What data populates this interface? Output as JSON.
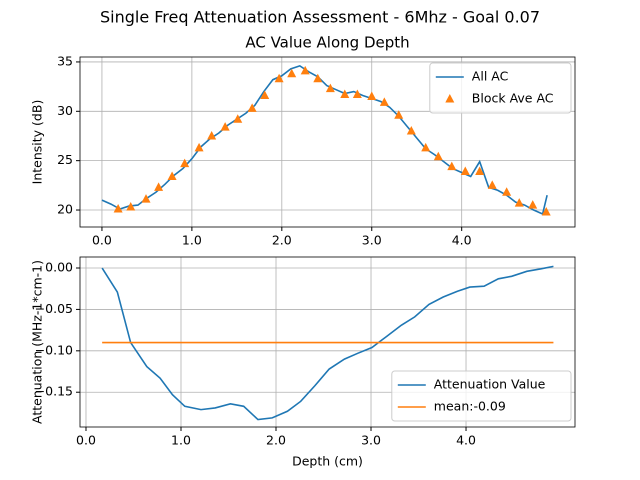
{
  "title": "Single Freq Attenuation Assessment - 6Mhz - Goal 0.07",
  "chart_data": [
    {
      "type": "line",
      "title": "AC Value Along Depth",
      "y_label": "Intensity (dB)",
      "xlim": [
        -0.244,
        5.26
      ],
      "ylim": [
        18.28,
        35.5
      ],
      "xticks": [
        {
          "value": 0,
          "label": "0.0"
        },
        {
          "value": 1,
          "label": "1.0"
        },
        {
          "value": 2,
          "label": "2.0"
        },
        {
          "value": 3,
          "label": "3.0"
        },
        {
          "value": 4,
          "label": "4.0"
        }
      ],
      "yticks": [
        20,
        25,
        30,
        35
      ],
      "grid": true,
      "legend": "upper-right",
      "series": [
        {
          "name": "All AC",
          "color": "#1f77b4",
          "marker": "none",
          "x": [
            0.0,
            0.1,
            0.2,
            0.3,
            0.4,
            0.5,
            0.6,
            0.7,
            0.8,
            0.9,
            1.0,
            1.1,
            1.2,
            1.3,
            1.4,
            1.5,
            1.6,
            1.7,
            1.8,
            1.9,
            2.0,
            2.1,
            2.2,
            2.3,
            2.4,
            2.5,
            2.6,
            2.7,
            2.8,
            2.9,
            3.0,
            3.1,
            3.2,
            3.3,
            3.4,
            3.5,
            3.6,
            3.7,
            3.8,
            3.9,
            4.0,
            4.1,
            4.2,
            4.3,
            4.4,
            4.5,
            4.6,
            4.7,
            4.8,
            4.9,
            4.95
          ],
          "values": [
            21.0,
            20.6,
            20.1,
            20.4,
            20.5,
            21.2,
            21.8,
            22.6,
            23.5,
            24.2,
            25.2,
            26.4,
            27.2,
            27.8,
            28.6,
            29.2,
            29.8,
            30.6,
            32.0,
            33.2,
            33.6,
            34.3,
            34.6,
            34.0,
            33.5,
            32.6,
            32.2,
            31.8,
            32.0,
            31.6,
            31.3,
            31.0,
            30.4,
            29.5,
            28.4,
            27.3,
            26.2,
            25.6,
            24.9,
            24.2,
            23.8,
            23.4,
            24.9,
            22.3,
            22.0,
            21.5,
            20.8,
            20.5,
            20.0,
            19.6,
            21.5
          ]
        },
        {
          "name": "Block Ave AC",
          "color": "#ff7f0e",
          "marker": "triangle",
          "x": [
            0.18,
            0.32,
            0.49,
            0.63,
            0.78,
            0.92,
            1.08,
            1.22,
            1.37,
            1.51,
            1.67,
            1.81,
            1.97,
            2.11,
            2.26,
            2.4,
            2.54,
            2.7,
            2.84,
            3.0,
            3.14,
            3.3,
            3.44,
            3.6,
            3.74,
            3.89,
            4.04,
            4.2,
            4.34,
            4.5,
            4.64,
            4.79,
            4.94
          ],
          "values": [
            20.1,
            20.3,
            21.1,
            22.3,
            23.4,
            24.7,
            26.3,
            27.5,
            28.4,
            29.2,
            30.3,
            31.6,
            33.3,
            33.8,
            34.1,
            33.3,
            32.3,
            31.7,
            31.7,
            31.5,
            30.9,
            29.6,
            28.0,
            26.3,
            25.4,
            24.4,
            23.9,
            23.9,
            22.5,
            21.8,
            20.7,
            20.5,
            19.8
          ]
        }
      ]
    },
    {
      "type": "line",
      "x_label": "Depth (cm)",
      "y_label": "Attenuation (MHz-1*cm-1)",
      "xlim": [
        -0.063,
        5.147
      ],
      "ylim": [
        -0.192,
        0.0133
      ],
      "xticks": [
        {
          "value": 0,
          "label": "0.0"
        },
        {
          "value": 1,
          "label": "1.0"
        },
        {
          "value": 2,
          "label": "2.0"
        },
        {
          "value": 3,
          "label": "3.0"
        },
        {
          "value": 4,
          "label": "4.0"
        }
      ],
      "yticks": [
        {
          "value": 0,
          "label": "0.00"
        },
        {
          "value": -0.05,
          "label": "−0.05"
        },
        {
          "value": -0.1,
          "label": "−0.10"
        },
        {
          "value": -0.15,
          "label": "−0.15"
        }
      ],
      "grid": true,
      "legend": "lower-right",
      "series": [
        {
          "name": "Attenuation Value",
          "color": "#1f77b4",
          "marker": "none",
          "x": [
            0.17,
            0.33,
            0.47,
            0.64,
            0.78,
            0.91,
            1.04,
            1.21,
            1.36,
            1.52,
            1.66,
            1.81,
            1.96,
            2.12,
            2.26,
            2.41,
            2.56,
            2.72,
            2.86,
            3.01,
            3.16,
            3.32,
            3.46,
            3.61,
            3.76,
            3.91,
            4.04,
            4.19,
            4.34,
            4.48,
            4.64,
            4.79,
            4.92
          ],
          "values": [
            0.0,
            -0.029,
            -0.09,
            -0.119,
            -0.133,
            -0.153,
            -0.167,
            -0.171,
            -0.169,
            -0.164,
            -0.167,
            -0.183,
            -0.181,
            -0.173,
            -0.161,
            -0.142,
            -0.122,
            -0.11,
            -0.103,
            -0.096,
            -0.083,
            -0.069,
            -0.059,
            -0.044,
            -0.035,
            -0.028,
            -0.023,
            -0.022,
            -0.013,
            -0.01,
            -0.004,
            -0.001,
            0.002
          ]
        },
        {
          "name": "mean:-0.09",
          "color": "#ff7f0e",
          "marker": "none",
          "x": [
            0.17,
            4.92
          ],
          "values": [
            -0.09,
            -0.09
          ]
        }
      ]
    }
  ]
}
